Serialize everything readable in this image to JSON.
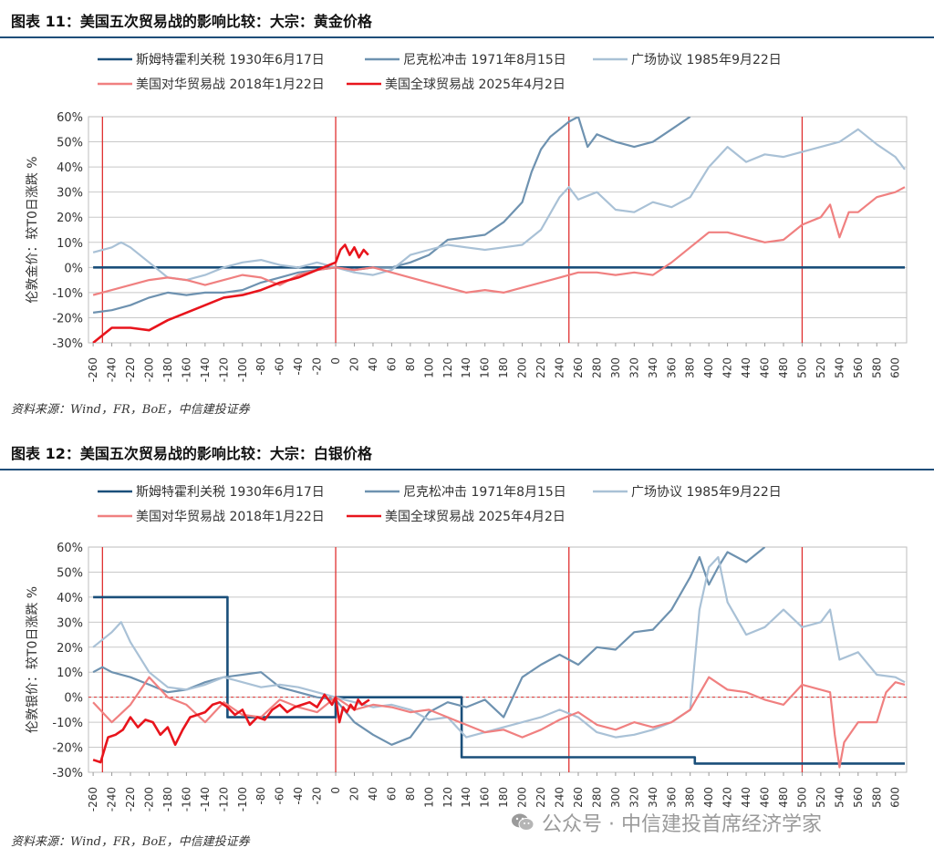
{
  "figures": [
    {
      "title": "图表 11：美国五次贸易战的影响比较：大宗：黄金价格",
      "source": "资料来源：Wind，FR，BoE，中信建投证券"
    },
    {
      "title": "图表 12：美国五次贸易战的影响比较：大宗：白银价格",
      "source": "资料来源：Wind，FR，BoE，中信建投证券"
    }
  ],
  "watermark": {
    "text": "公众号 · 中信建投首席经济学家",
    "icon": "wechat-logo-icon"
  },
  "colors": {
    "smoot": "#1a4f7a",
    "nixon": "#6e92b0",
    "plaza": "#a9c1d6",
    "china2018": "#f08080",
    "global2025": "#e8141c",
    "vline": "#e03030",
    "grid": "#c8c8c8"
  },
  "chart_data": [
    {
      "type": "line",
      "ylabel": "伦敦金价：较T0日涨跌 %",
      "xlim": [
        -265,
        612
      ],
      "ylim": [
        -30,
        60
      ],
      "yticks": [
        -30,
        -20,
        -10,
        0,
        10,
        20,
        30,
        40,
        50,
        60
      ],
      "ytick_labels": [
        "-30%",
        "-20%",
        "-10%",
        "0%",
        "10%",
        "20%",
        "30%",
        "40%",
        "50%",
        "60%"
      ],
      "xticks": [
        -260,
        -240,
        -220,
        -200,
        -180,
        -160,
        -140,
        -120,
        -100,
        -80,
        -60,
        -40,
        -20,
        0,
        20,
        40,
        60,
        80,
        100,
        120,
        140,
        160,
        180,
        200,
        220,
        240,
        260,
        280,
        300,
        320,
        340,
        360,
        380,
        400,
        420,
        440,
        460,
        480,
        500,
        520,
        540,
        560,
        580,
        600
      ],
      "vlines": [
        -250,
        0,
        250,
        500
      ],
      "legend_position": "top",
      "series": [
        {
          "name": "斯姆特霍利关税 1930年6月17日",
          "key": "smoot",
          "width": 2.6,
          "x": [
            -260,
            610
          ],
          "y": [
            0,
            0
          ]
        },
        {
          "name": "尼克松冲击 1971年8月15日",
          "key": "nixon",
          "width": 2.2,
          "x": [
            -260,
            -240,
            -220,
            -200,
            -180,
            -160,
            -140,
            -120,
            -100,
            -80,
            -60,
            -40,
            -20,
            0,
            20,
            40,
            60,
            80,
            100,
            120,
            140,
            160,
            180,
            200,
            210,
            220,
            230,
            240,
            250,
            260,
            270,
            280,
            300,
            320,
            340,
            360,
            380
          ],
          "y": [
            -18,
            -17,
            -15,
            -12,
            -10,
            -11,
            -10,
            -10,
            -9,
            -6,
            -4,
            -2,
            -1,
            0,
            -1,
            0,
            0,
            2,
            5,
            11,
            12,
            13,
            18,
            26,
            38,
            47,
            52,
            55,
            58,
            60,
            48,
            53,
            50,
            48,
            50,
            55,
            60
          ]
        },
        {
          "name": "广场协议 1985年9月22日",
          "key": "plaza",
          "width": 2.2,
          "x": [
            -260,
            -240,
            -230,
            -220,
            -200,
            -180,
            -160,
            -140,
            -120,
            -100,
            -80,
            -60,
            -40,
            -20,
            0,
            20,
            40,
            60,
            80,
            100,
            120,
            140,
            160,
            180,
            200,
            220,
            240,
            250,
            260,
            280,
            300,
            320,
            340,
            360,
            380,
            400,
            420,
            440,
            460,
            480,
            500,
            520,
            540,
            560,
            580,
            600,
            610
          ],
          "y": [
            6,
            8,
            10,
            8,
            2,
            -4,
            -5,
            -3,
            0,
            2,
            3,
            1,
            0,
            2,
            0,
            -2,
            -3,
            -1,
            5,
            7,
            9,
            8,
            7,
            8,
            9,
            15,
            28,
            32,
            27,
            30,
            23,
            22,
            26,
            24,
            28,
            40,
            48,
            42,
            45,
            44,
            46,
            48,
            50,
            55,
            49,
            44,
            39
          ]
        },
        {
          "name": "美国对华贸易战 2018年1月22日",
          "key": "china2018",
          "width": 2.2,
          "x": [
            -260,
            -240,
            -220,
            -200,
            -180,
            -160,
            -140,
            -120,
            -100,
            -80,
            -60,
            -40,
            -20,
            0,
            20,
            40,
            60,
            80,
            100,
            120,
            140,
            160,
            180,
            200,
            220,
            240,
            260,
            280,
            300,
            320,
            340,
            360,
            380,
            400,
            420,
            440,
            460,
            480,
            500,
            520,
            530,
            540,
            550,
            560,
            580,
            600,
            610
          ],
          "y": [
            -11,
            -9,
            -7,
            -5,
            -4,
            -5,
            -7,
            -5,
            -3,
            -4,
            -7,
            -3,
            -1,
            0,
            -1,
            0,
            -2,
            -4,
            -6,
            -8,
            -10,
            -9,
            -10,
            -8,
            -6,
            -4,
            -2,
            -2,
            -3,
            -2,
            -3,
            2,
            8,
            14,
            14,
            12,
            10,
            11,
            17,
            20,
            25,
            12,
            22,
            22,
            28,
            30,
            32
          ]
        },
        {
          "name": "美国全球贸易战 2025年4月2日",
          "key": "global2025",
          "width": 2.6,
          "x": [
            -260,
            -250,
            -240,
            -220,
            -200,
            -180,
            -160,
            -140,
            -120,
            -100,
            -80,
            -60,
            -40,
            -20,
            0,
            5,
            10,
            15,
            20,
            25,
            30,
            35
          ],
          "y": [
            -30,
            -27,
            -24,
            -24,
            -25,
            -21,
            -18,
            -15,
            -12,
            -11,
            -9,
            -6,
            -4,
            -1,
            2,
            7,
            9,
            5,
            8,
            4,
            7,
            5
          ]
        }
      ]
    },
    {
      "type": "line",
      "ylabel": "伦敦银价：较T0日涨跌 %",
      "xlim": [
        -265,
        612
      ],
      "ylim": [
        -30,
        60
      ],
      "yticks": [
        -30,
        -20,
        -10,
        0,
        10,
        20,
        30,
        40,
        50,
        60
      ],
      "ytick_labels": [
        "-30%",
        "-20%",
        "-10%",
        "0%",
        "10%",
        "20%",
        "30%",
        "40%",
        "50%",
        "60%"
      ],
      "xticks": [
        -260,
        -240,
        -220,
        -200,
        -180,
        -160,
        -140,
        -120,
        -100,
        -80,
        -60,
        -40,
        -20,
        0,
        20,
        40,
        60,
        80,
        100,
        120,
        140,
        160,
        180,
        200,
        220,
        240,
        260,
        280,
        300,
        320,
        340,
        360,
        380,
        400,
        420,
        440,
        460,
        480,
        500,
        520,
        540,
        560,
        580,
        600
      ],
      "vlines": [
        -250,
        0,
        250,
        500
      ],
      "dashed_zero": true,
      "legend_position": "top",
      "series": [
        {
          "name": "斯姆特霍利关税 1930年6月17日",
          "key": "smoot",
          "width": 2.6,
          "x": [
            -260,
            -116,
            -116,
            0,
            0,
            135,
            135,
            385,
            385,
            610
          ],
          "y": [
            40,
            40,
            -8,
            -8,
            0,
            0,
            -24,
            -24,
            -26.5,
            -26.5
          ]
        },
        {
          "name": "尼克松冲击 1971年8月15日",
          "key": "nixon",
          "width": 2.2,
          "x": [
            -260,
            -250,
            -240,
            -220,
            -200,
            -180,
            -160,
            -140,
            -120,
            -100,
            -80,
            -60,
            -40,
            -20,
            0,
            20,
            40,
            60,
            80,
            100,
            120,
            140,
            160,
            180,
            200,
            220,
            240,
            260,
            280,
            300,
            320,
            340,
            360,
            380,
            390,
            400,
            410,
            420,
            440,
            460
          ],
          "y": [
            10,
            12,
            10,
            8,
            5,
            2,
            3,
            6,
            8,
            9,
            10,
            4,
            2,
            0,
            -1,
            -10,
            -15,
            -19,
            -16,
            -6,
            -2,
            -4,
            -1,
            -8,
            8,
            13,
            17,
            13,
            20,
            19,
            26,
            27,
            35,
            48,
            56,
            45,
            52,
            58,
            54,
            60
          ]
        },
        {
          "name": "广场协议 1985年9月22日",
          "key": "plaza",
          "width": 2.2,
          "x": [
            -260,
            -240,
            -230,
            -220,
            -200,
            -180,
            -160,
            -140,
            -120,
            -100,
            -80,
            -60,
            -40,
            -20,
            0,
            20,
            40,
            60,
            80,
            100,
            120,
            140,
            160,
            180,
            200,
            220,
            240,
            260,
            280,
            300,
            320,
            340,
            360,
            380,
            390,
            400,
            410,
            420,
            440,
            460,
            480,
            500,
            520,
            530,
            540,
            560,
            580,
            600,
            610
          ],
          "y": [
            20,
            26,
            30,
            22,
            10,
            4,
            3,
            5,
            8,
            6,
            4,
            5,
            4,
            2,
            0,
            -2,
            -4,
            -3,
            -5,
            -9,
            -8,
            -16,
            -14,
            -12,
            -10,
            -8,
            -5,
            -8,
            -14,
            -16,
            -15,
            -13,
            -10,
            -5,
            35,
            52,
            56,
            38,
            25,
            28,
            35,
            28,
            30,
            35,
            15,
            18,
            9,
            8,
            6
          ]
        },
        {
          "name": "美国对华贸易战 2018年1月22日",
          "key": "china2018",
          "width": 2.2,
          "x": [
            -260,
            -240,
            -220,
            -200,
            -180,
            -160,
            -140,
            -120,
            -100,
            -80,
            -60,
            -40,
            -20,
            0,
            20,
            40,
            60,
            80,
            100,
            120,
            140,
            160,
            180,
            200,
            220,
            240,
            260,
            280,
            300,
            320,
            340,
            360,
            380,
            400,
            420,
            440,
            460,
            480,
            500,
            520,
            530,
            535,
            540,
            545,
            560,
            580,
            590,
            600,
            610
          ],
          "y": [
            -2,
            -10,
            -3,
            8,
            0,
            -3,
            -10,
            -2,
            -7,
            -8,
            -1,
            -4,
            -6,
            0,
            -5,
            -3,
            -4,
            -6,
            -5,
            -8,
            -11,
            -14,
            -13,
            -16,
            -13,
            -9,
            -6,
            -11,
            -13,
            -10,
            -12,
            -10,
            -5,
            8,
            3,
            2,
            -1,
            -3,
            5,
            3,
            2,
            -15,
            -28,
            -18,
            -10,
            -10,
            2,
            6,
            5
          ]
        },
        {
          "name": "美国全球贸易战 2025年4月2日",
          "key": "global2025",
          "width": 2.6,
          "x": [
            -260,
            -252,
            -244,
            -236,
            -228,
            -220,
            -212,
            -204,
            -196,
            -188,
            -180,
            -172,
            -164,
            -156,
            -148,
            -140,
            -132,
            -124,
            -116,
            -108,
            -100,
            -92,
            -84,
            -76,
            -68,
            -60,
            -52,
            -44,
            -36,
            -28,
            -20,
            -12,
            -4,
            0,
            4,
            8,
            12,
            16,
            20,
            24,
            28,
            32,
            36
          ],
          "y": [
            -25,
            -26,
            -16,
            -15,
            -13,
            -8,
            -12,
            -9,
            -10,
            -15,
            -12,
            -19,
            -13,
            -8,
            -7,
            -6,
            -3,
            -2,
            -4,
            -7,
            -5,
            -11,
            -8,
            -9,
            -5,
            -3,
            -6,
            -4,
            -3,
            -2,
            -4,
            1,
            -3,
            0,
            -10,
            -4,
            -6,
            -3,
            -5,
            -1,
            -3,
            -2,
            -1
          ]
        }
      ]
    }
  ]
}
